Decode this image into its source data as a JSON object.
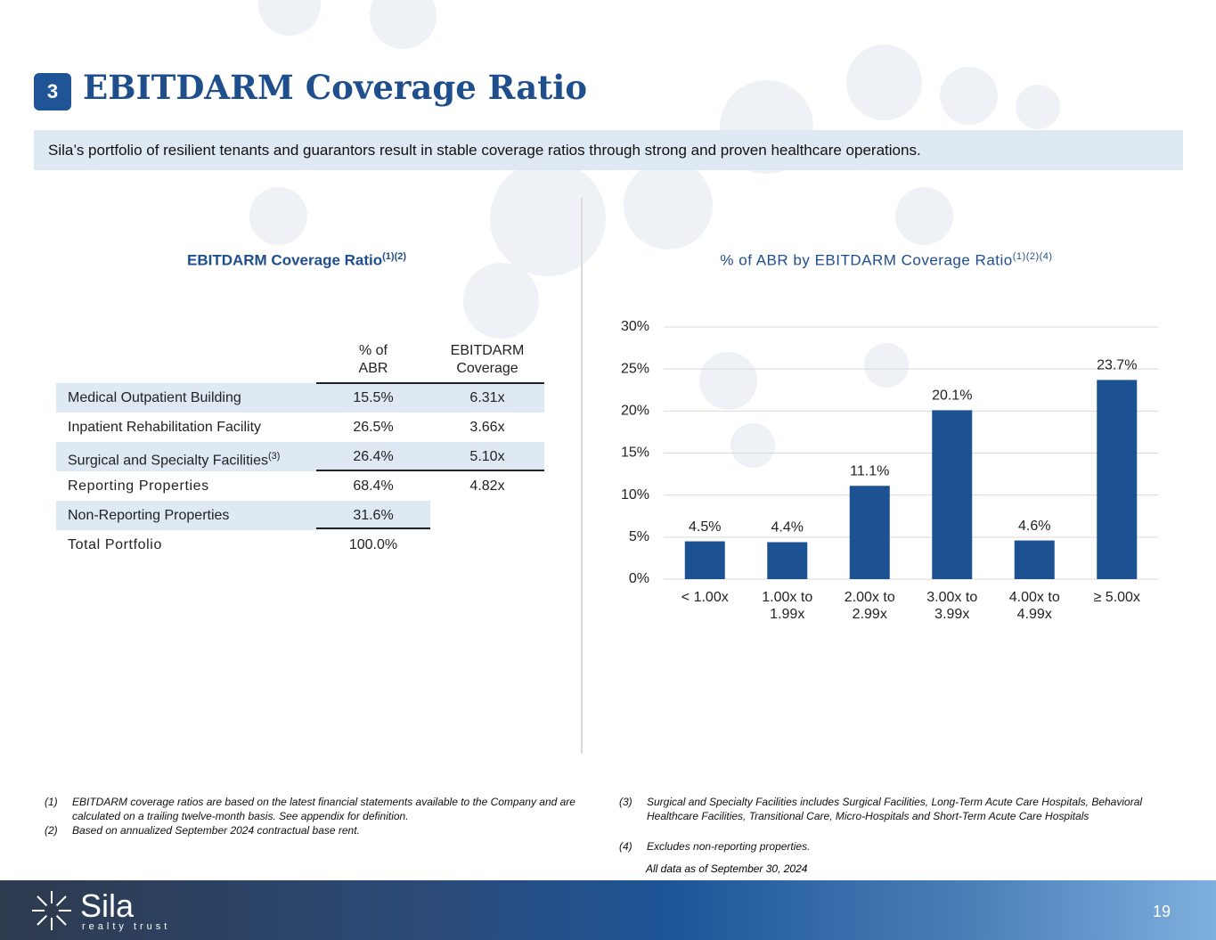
{
  "header": {
    "badge": "3",
    "title": "EBITDARM Coverage Ratio",
    "banner": "Sila’s portfolio of resilient tenants and guarantors result in stable coverage ratios through strong and proven healthcare operations."
  },
  "table": {
    "title": "EBITDARM Coverage Ratio",
    "title_sup": "(1)(2)",
    "columns": [
      "% of ABR",
      "EBITDARM Coverage"
    ],
    "rows": [
      {
        "label": "Medical Outpatient Building",
        "abr": "15.5%",
        "coverage": "6.31x"
      },
      {
        "label": "Inpatient Rehabilitation Facility",
        "abr": "26.5%",
        "coverage": "3.66x"
      },
      {
        "label": "Surgical and Specialty Facilities",
        "sup": "(3)",
        "abr": "26.4%",
        "coverage": "5.10x"
      },
      {
        "label": "Reporting Properties",
        "abr": "68.4%",
        "coverage": "4.82x"
      },
      {
        "label": "Non-Reporting Properties",
        "abr": "31.6%"
      },
      {
        "label": "Total Portfolio",
        "abr": "100.0%"
      }
    ]
  },
  "chart_data": {
    "type": "bar",
    "title": "% of ABR by EBITDARM Coverage Ratio",
    "title_sup": "(1)(2)(4)",
    "categories": [
      "< 1.00x",
      "1.00x to 1.99x",
      "2.00x to 2.99x",
      "3.00x to 3.99x",
      "4.00x to 4.99x",
      "≥ 5.00x"
    ],
    "values": [
      4.5,
      4.4,
      11.1,
      20.1,
      4.6,
      23.7
    ],
    "value_labels": [
      "4.5%",
      "4.4%",
      "11.1%",
      "20.1%",
      "4.6%",
      "23.7%"
    ],
    "color": "#1c5291",
    "ylim": [
      0,
      30
    ],
    "yticks": [
      {
        "value": 0,
        "label": "0%"
      },
      {
        "value": 5,
        "label": "5%"
      },
      {
        "value": 10,
        "label": "10%"
      },
      {
        "value": 15,
        "label": "15%"
      },
      {
        "value": 20,
        "label": "20%"
      },
      {
        "value": 25,
        "label": "25%"
      },
      {
        "value": 30,
        "label": "30%"
      }
    ],
    "grid": true
  },
  "footnotes": [
    {
      "marker": "(1)",
      "text": "EBITDARM coverage ratios are based on the latest financial statements available to the Company and are calculated on a trailing twelve-month basis. See appendix for definition."
    },
    {
      "marker": "(2)",
      "text": "Based on annualized September 2024 contractual base rent."
    },
    {
      "marker": "(3)",
      "text": "Surgical and Specialty Facilities includes Surgical Facilities, Long-Term Acute Care Hospitals, Behavioral Healthcare Facilities, Transitional Care, Micro-Hospitals and Short-Term Acute Care Hospitals"
    },
    {
      "marker": "(4)",
      "text": "Excludes non-reporting properties."
    }
  ],
  "as_of": "All data as of September 30, 2024",
  "footer": {
    "logo_name": "Sila",
    "logo_tagline": "realty trust",
    "page": "19"
  }
}
